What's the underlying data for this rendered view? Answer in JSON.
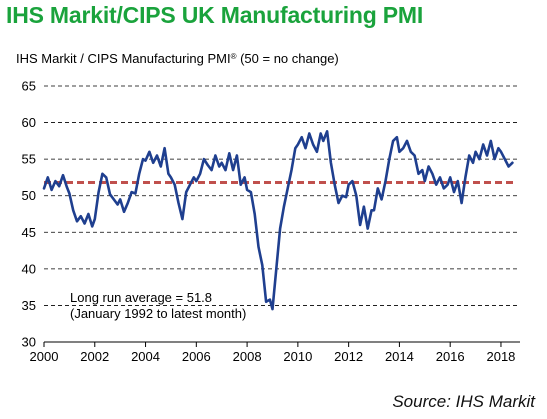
{
  "title": "IHS Markit/CIPS UK Manufacturing PMI",
  "source": "Source: IHS Markit",
  "colors": {
    "title": "#1aa33c",
    "series": "#1f3f8f",
    "average": "#c0504d",
    "grid": "#000000"
  },
  "chart_data": {
    "type": "line",
    "subtitle_parts": {
      "before": "IHS Markit / CIPS Manufacturing PMI",
      "mark": "®",
      "after": " (50 = no change)"
    },
    "xlabel": "",
    "ylabel": "",
    "xlim": [
      2000,
      2018.75
    ],
    "ylim": [
      30,
      65
    ],
    "x_ticks": [
      2000,
      2002,
      2004,
      2006,
      2008,
      2010,
      2012,
      2014,
      2016,
      2018
    ],
    "x_tick_labels": [
      "2000",
      "2002",
      "2004",
      "2006",
      "2008",
      "2010",
      "2012",
      "2014",
      "2016",
      "2018"
    ],
    "y_ticks": [
      30,
      35,
      40,
      45,
      50,
      55,
      60,
      65
    ],
    "y_tick_labels": [
      "30",
      "35",
      "40",
      "45",
      "50",
      "55",
      "60",
      "65"
    ],
    "grid": "horizontal dashed",
    "legend": "none",
    "annotation": {
      "line1": "Long run average = 51.8",
      "line2": "(January 1992 to latest month)"
    },
    "average": {
      "value": 51.8,
      "x_range": [
        2000,
        2018.5
      ]
    },
    "series": [
      {
        "x": [
          2000.0,
          2000.15,
          2000.3,
          2000.45,
          2000.6,
          2000.75,
          2000.9,
          2001.0,
          2001.15,
          2001.3,
          2001.45,
          2001.6,
          2001.75,
          2001.9,
          2002.0,
          2002.15,
          2002.3,
          2002.45,
          2002.6,
          2002.75,
          2002.9,
          2003.0,
          2003.15,
          2003.3,
          2003.45,
          2003.6,
          2003.75,
          2003.9,
          2004.0,
          2004.15,
          2004.3,
          2004.45,
          2004.6,
          2004.75,
          2004.9,
          2005.0,
          2005.15,
          2005.3,
          2005.45,
          2005.6,
          2005.75,
          2005.9,
          2006.0,
          2006.15,
          2006.3,
          2006.45,
          2006.6,
          2006.75,
          2006.9,
          2007.0,
          2007.15,
          2007.3,
          2007.45,
          2007.6,
          2007.75,
          2007.9,
          2008.0,
          2008.15,
          2008.3,
          2008.45,
          2008.6,
          2008.75,
          2008.9,
          2009.0,
          2009.15,
          2009.3,
          2009.45,
          2009.6,
          2009.75,
          2009.9,
          2010.0,
          2010.15,
          2010.3,
          2010.45,
          2010.6,
          2010.75,
          2010.9,
          2011.0,
          2011.15,
          2011.3,
          2011.45,
          2011.6,
          2011.75,
          2011.9,
          2012.0,
          2012.15,
          2012.3,
          2012.45,
          2012.6,
          2012.75,
          2012.9,
          2013.0,
          2013.15,
          2013.3,
          2013.45,
          2013.6,
          2013.75,
          2013.9,
          2014.0,
          2014.15,
          2014.3,
          2014.45,
          2014.6,
          2014.75,
          2014.9,
          2015.0,
          2015.15,
          2015.3,
          2015.45,
          2015.6,
          2015.75,
          2015.9,
          2016.0,
          2016.15,
          2016.3,
          2016.45,
          2016.6,
          2016.75,
          2016.9,
          2017.0,
          2017.15,
          2017.3,
          2017.45,
          2017.6,
          2017.75,
          2017.9,
          2018.0,
          2018.15,
          2018.3,
          2018.45
        ],
        "y": [
          51.0,
          52.5,
          50.8,
          52.0,
          51.3,
          52.8,
          51.2,
          50.3,
          48.0,
          46.5,
          47.2,
          46.2,
          47.5,
          45.8,
          46.8,
          50.5,
          53.0,
          52.5,
          50.2,
          49.5,
          48.8,
          49.5,
          47.8,
          49.0,
          50.5,
          50.3,
          53.0,
          55.0,
          54.8,
          56.0,
          54.5,
          55.5,
          54.0,
          56.5,
          53.0,
          52.5,
          51.5,
          49.0,
          46.8,
          50.5,
          51.5,
          52.5,
          52.0,
          53.0,
          55.0,
          54.2,
          53.5,
          55.5,
          54.0,
          54.5,
          53.5,
          55.8,
          53.5,
          55.5,
          51.5,
          52.5,
          50.8,
          50.5,
          47.5,
          43.0,
          40.5,
          35.5,
          35.8,
          34.5,
          40.0,
          45.5,
          48.5,
          51.0,
          53.5,
          56.5,
          57.0,
          58.0,
          56.5,
          58.5,
          57.0,
          56.0,
          58.5,
          57.5,
          58.8,
          54.5,
          51.5,
          49.0,
          50.0,
          49.8,
          51.5,
          52.0,
          50.0,
          46.0,
          48.5,
          45.5,
          48.0,
          48.0,
          51.0,
          49.5,
          52.0,
          55.0,
          57.5,
          58.0,
          56.0,
          56.5,
          57.5,
          56.0,
          55.5,
          53.0,
          53.5,
          52.0,
          54.0,
          53.0,
          51.5,
          52.5,
          51.0,
          51.5,
          52.5,
          50.5,
          52.0,
          49.0,
          52.5,
          55.5,
          54.5,
          56.0,
          55.0,
          57.0,
          55.5,
          57.5,
          55.0,
          56.5,
          56.0,
          55.0,
          54.0,
          54.5
        ]
      }
    ]
  }
}
